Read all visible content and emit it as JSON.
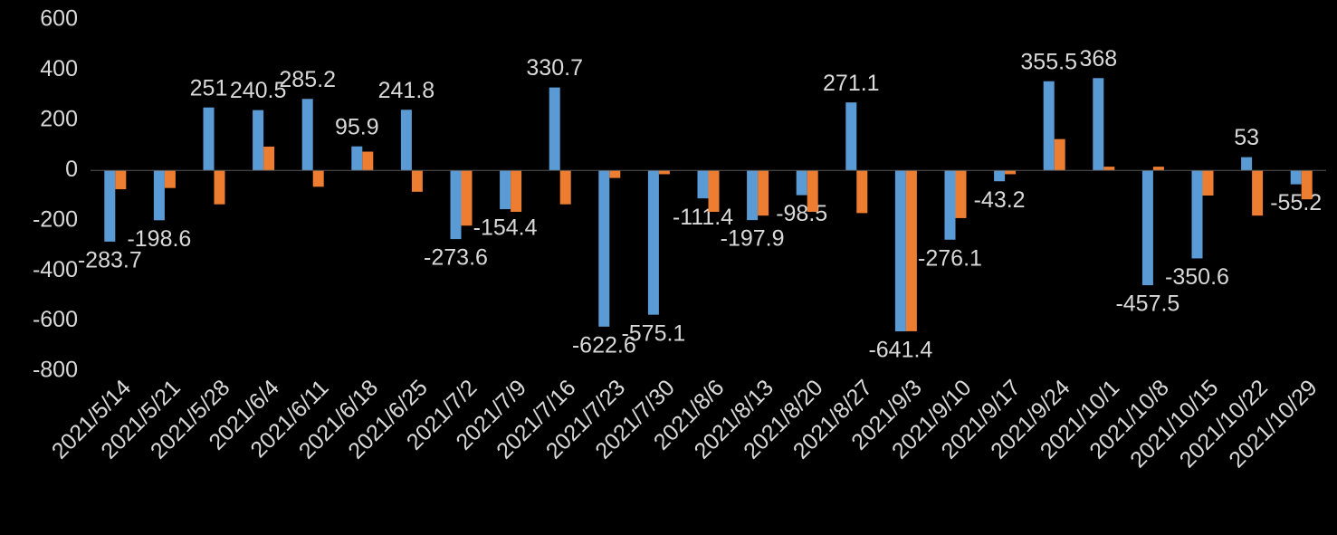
{
  "chart_data": {
    "type": "bar",
    "categories": [
      "2021/5/14",
      "2021/5/21",
      "2021/5/28",
      "2021/6/4",
      "2021/6/11",
      "2021/6/18",
      "2021/6/25",
      "2021/7/2",
      "2021/7/9",
      "2021/7/16",
      "2021/7/23",
      "2021/7/30",
      "2021/8/6",
      "2021/8/13",
      "2021/8/20",
      "2021/8/27",
      "2021/9/3",
      "2021/9/10",
      "2021/9/17",
      "2021/9/24",
      "2021/10/1",
      "2021/10/8",
      "2021/10/15",
      "2021/10/22",
      "2021/10/29"
    ],
    "series": [
      {
        "color": "#5b9bd5",
        "labels": true,
        "values": [
          -283.7,
          -198.6,
          251,
          240.5,
          285.2,
          95.9,
          241.8,
          -273.6,
          -154.4,
          330.7,
          -622.6,
          -575.1,
          -111.4,
          -197.9,
          -98.5,
          271.1,
          -641.4,
          -276.1,
          -43.2,
          355.5,
          368,
          -457.5,
          -350.6,
          53,
          -55.2
        ]
      },
      {
        "color": "#ed7d31",
        "labels": false,
        "values": [
          -75,
          -70,
          -135,
          95,
          -65,
          75,
          -85,
          -220,
          -165,
          -135,
          -30,
          -15,
          -165,
          -180,
          -165,
          -170,
          -641,
          -190,
          -15,
          125,
          15,
          15,
          -100,
          -180,
          -115
        ]
      }
    ],
    "ylim": [
      -800,
      600
    ],
    "yticks": [
      -800,
      -600,
      -400,
      -200,
      0,
      200,
      400,
      600
    ],
    "grid": false
  }
}
